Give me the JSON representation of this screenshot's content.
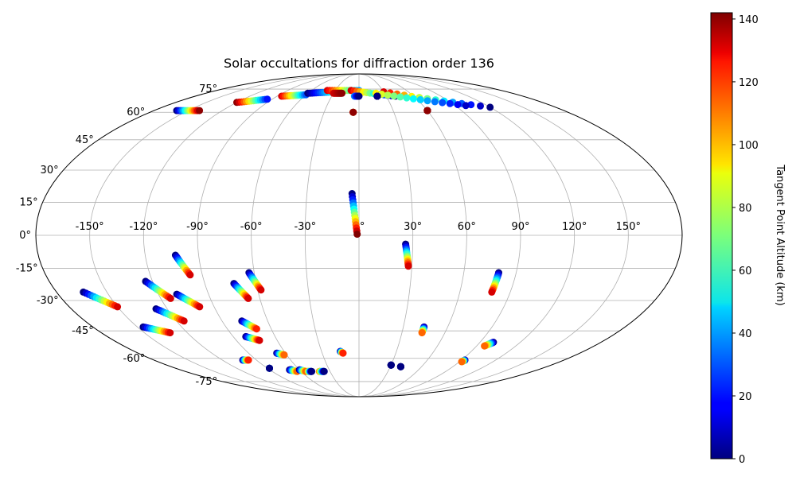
{
  "chart_data": {
    "type": "scatter",
    "title": "Solar occultations for diffraction order 136",
    "projection": "mollweide",
    "grid": true,
    "colorbar": {
      "label": "Tangent Point Altitude (km)",
      "colormap": "jet",
      "range": [
        0,
        142
      ],
      "ticks": [
        "0",
        "20",
        "40",
        "60",
        "80",
        "100",
        "120",
        "140"
      ],
      "tick_values": [
        0,
        20,
        40,
        60,
        80,
        100,
        120,
        140
      ]
    },
    "lon_ticks": [
      "-150°",
      "-120°",
      "-90°",
      "-60°",
      "-30°",
      "0°",
      "30°",
      "60°",
      "90°",
      "120°",
      "150°"
    ],
    "lon_tick_values": [
      -150,
      -120,
      -90,
      -60,
      -30,
      0,
      30,
      60,
      90,
      120,
      150
    ],
    "lat_ticks": [
      "75°",
      "60°",
      "45°",
      "30°",
      "15°",
      "0°",
      "-15°",
      "-30°",
      "-45°",
      "-60°",
      "-75°"
    ],
    "lat_tick_values": [
      75,
      60,
      45,
      30,
      15,
      0,
      -15,
      -30,
      -45,
      -60,
      -75
    ],
    "occultations": [
      {
        "lon": [
          -4,
          -1
        ],
        "lat": [
          19,
          0.5
        ],
        "alt": [
          0,
          142
        ]
      },
      {
        "lon": [
          26,
          28
        ],
        "lat": [
          -4,
          -14
        ],
        "alt": [
          0,
          130
        ]
      },
      {
        "lon": [
          80,
          79
        ],
        "lat": [
          -17,
          -26
        ],
        "alt": [
          0,
          130
        ]
      },
      {
        "lon": [
          -103,
          -97
        ],
        "lat": [
          -9,
          -18
        ],
        "alt": [
          0,
          130
        ]
      },
      {
        "lon": [
          -63,
          -58
        ],
        "lat": [
          -17,
          -25
        ],
        "alt": [
          0,
          130
        ]
      },
      {
        "lon": [
          -73,
          -67
        ],
        "lat": [
          -22,
          -29
        ],
        "alt": [
          0,
          130
        ]
      },
      {
        "lon": [
          -124,
          -114
        ],
        "lat": [
          -21,
          -29
        ],
        "alt": [
          0,
          130
        ]
      },
      {
        "lon": [
          -109,
          -99
        ],
        "lat": [
          -27,
          -33
        ],
        "alt": [
          0,
          130
        ]
      },
      {
        "lon": [
          -164,
          -150
        ],
        "lat": [
          -26,
          -33
        ],
        "alt": [
          0,
          130
        ]
      },
      {
        "lon": [
          -127,
          -115
        ],
        "lat": [
          -34,
          -40
        ],
        "alt": [
          0,
          130
        ]
      },
      {
        "lon": [
          -146,
          -132
        ],
        "lat": [
          -43,
          -46
        ],
        "alt": [
          0,
          130
        ]
      },
      {
        "lon": [
          -77,
          -70
        ],
        "lat": [
          -40,
          -44
        ],
        "alt": [
          0,
          120
        ]
      },
      {
        "lon": [
          -81,
          -73
        ],
        "lat": [
          -48,
          -50
        ],
        "alt": [
          0,
          130
        ]
      },
      {
        "lon": [
          44,
          44
        ],
        "lat": [
          -43,
          -46
        ],
        "alt": [
          0,
          110
        ]
      },
      {
        "lon": [
          100,
          96
        ],
        "lat": [
          -51,
          -53
        ],
        "alt": [
          0,
          110
        ]
      },
      {
        "lon": [
          -15,
          -13
        ],
        "lat": [
          -56,
          -57
        ],
        "alt": [
          0,
          120
        ]
      },
      {
        "lon": [
          -67,
          -62
        ],
        "lat": [
          -57,
          -58
        ],
        "alt": [
          0,
          110
        ]
      },
      {
        "lon": [
          -102,
          -97
        ],
        "lat": [
          -61,
          -61
        ],
        "alt": [
          0,
          120
        ]
      },
      {
        "lon": [
          93,
          92
        ],
        "lat": [
          -61,
          -62
        ],
        "alt": [
          0,
          110
        ]
      },
      {
        "lon": [
          30,
          30
        ],
        "lat": [
          -64,
          -64
        ],
        "alt": [
          0,
          0
        ]
      },
      {
        "lon": [
          40,
          40
        ],
        "lat": [
          -65,
          -65
        ],
        "alt": [
          0,
          0
        ]
      },
      {
        "lon": [
          -88,
          -88
        ],
        "lat": [
          -66,
          -66
        ],
        "alt": [
          110,
          0
        ]
      },
      {
        "lon": [
          -70,
          -68
        ],
        "lat": [
          -67,
          -67
        ],
        "alt": [
          110,
          0
        ]
      },
      {
        "lon": [
          -70,
          -64
        ],
        "lat": [
          -67,
          -68
        ],
        "alt": [
          0,
          110
        ]
      },
      {
        "lon": [
          -60,
          -55
        ],
        "lat": [
          -67,
          -68
        ],
        "alt": [
          0,
          110
        ]
      },
      {
        "lon": [
          -53,
          -49
        ],
        "lat": [
          -68,
          -68
        ],
        "alt": [
          110,
          0
        ]
      },
      {
        "lon": [
          -41,
          -36
        ],
        "lat": [
          -68,
          -68
        ],
        "alt": [
          110,
          0
        ]
      },
      {
        "lon": [
          -160,
          -140
        ],
        "lat": [
          61,
          61
        ],
        "alt": [
          0,
          140
        ]
      },
      {
        "lon": [
          -120,
          -95
        ],
        "lat": [
          66,
          68
        ],
        "alt": [
          140,
          20
        ]
      },
      {
        "lon": [
          -85,
          -60
        ],
        "lat": [
          70,
          71
        ],
        "alt": [
          130,
          30
        ]
      },
      {
        "lon": [
          -60,
          -30
        ],
        "lat": [
          72,
          73
        ],
        "alt": [
          0,
          60
        ]
      },
      {
        "lon": [
          -40,
          0
        ],
        "lat": [
          74,
          74
        ],
        "alt": [
          130,
          40
        ]
      },
      {
        "lon": [
          -10,
          40
        ],
        "lat": [
          74,
          70
        ],
        "alt": [
          130,
          0
        ]
      },
      {
        "lon": [
          30,
          120
        ],
        "lat": [
          73,
          63
        ],
        "alt": [
          130,
          0
        ]
      },
      {
        "lon": [
          20,
          100
        ],
        "lat": [
          72,
          64
        ],
        "alt": [
          90,
          10
        ]
      },
      {
        "lon": [
          -30,
          -20
        ],
        "lat": [
          72,
          72
        ],
        "alt": [
          130,
          140
        ]
      },
      {
        "lon": [
          -5,
          0
        ],
        "lat": [
          70,
          70
        ],
        "alt": [
          40,
          0
        ]
      },
      {
        "lon": [
          -5,
          -5
        ],
        "lat": [
          60,
          60
        ],
        "alt": [
          30,
          140
        ]
      },
      {
        "lon": [
          60,
          60
        ],
        "lat": [
          61,
          61
        ],
        "alt": [
          140,
          140
        ]
      },
      {
        "lon": [
          20,
          20
        ],
        "lat": [
          70,
          70
        ],
        "alt": [
          0,
          0
        ]
      }
    ]
  }
}
